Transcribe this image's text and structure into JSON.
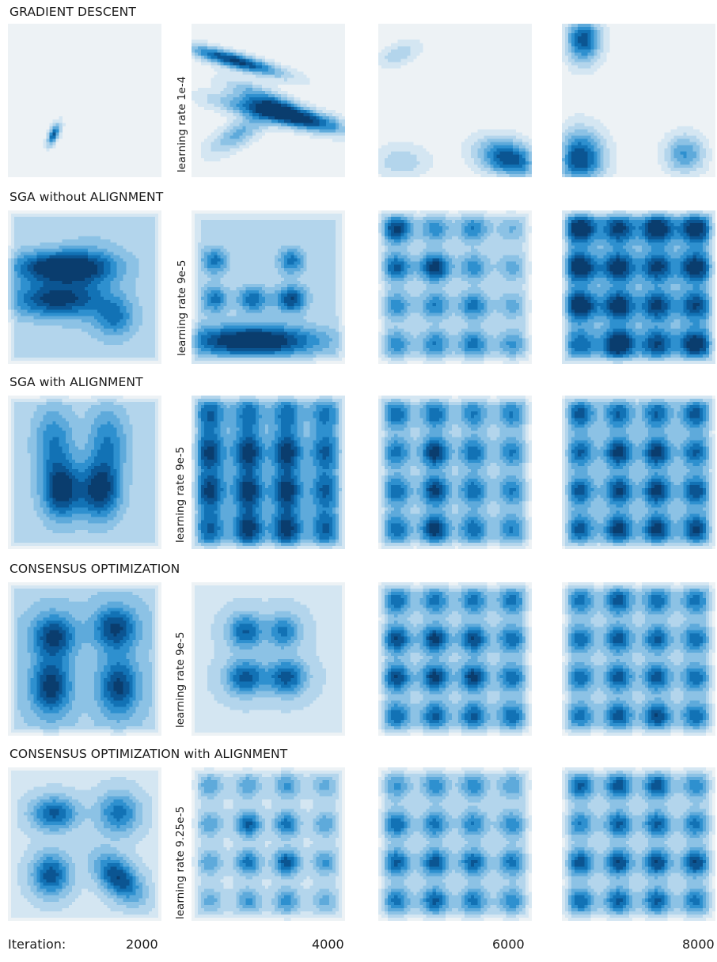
{
  "rows": [
    {
      "title": "GRADIENT DESCENT",
      "learning_rate_label": "learning rate 1e-4"
    },
    {
      "title": "SGA without ALIGNMENT",
      "learning_rate_label": "learning rate 9e-5"
    },
    {
      "title": "SGA with ALIGNMENT",
      "learning_rate_label": "learning rate 9e-5"
    },
    {
      "title": "CONSENSUS OPTIMIZATION",
      "learning_rate_label": "learning rate 9e-5"
    },
    {
      "title": "CONSENSUS OPTIMIZATION with ALIGNMENT",
      "learning_rate_label": "learning rate 9.25e-5"
    }
  ],
  "footer": {
    "iteration_label": "Iteration:",
    "iterations": [
      "2000",
      "4000",
      "6000",
      "8000"
    ]
  },
  "colors": [
    "#edf2f5",
    "#d4e6f2",
    "#b3d5ec",
    "#8cc2e5",
    "#5eaadb",
    "#2e90cf",
    "#1272b5",
    "#0b5592",
    "#0a3d6e"
  ],
  "chart_data": {
    "type": "heatmap",
    "description_units": "kernel density of generator samples on a 2D domain; x,y in [0,1]; density in [0,1]",
    "rows": [
      "GRADIENT DESCENT",
      "SGA without ALIGNMENT",
      "SGA with ALIGNMENT",
      "CONSENSUS OPTIMIZATION",
      "CONSENSUS OPTIMIZATION with ALIGNMENT"
    ],
    "columns": [
      "2000",
      "4000",
      "6000",
      "8000"
    ],
    "panels": [
      [
        {
          "base": 0,
          "blobs": [
            [
              0.3,
              0.72,
              0.03,
              0.05,
              0.88,
              -0.6
            ]
          ]
        },
        {
          "base": 0,
          "blobs": [
            [
              0.28,
              0.24,
              0.22,
              0.07,
              1.0,
              0.85
            ],
            [
              0.62,
              0.6,
              0.3,
              0.08,
              0.95,
              0.8
            ],
            [
              0.3,
              0.72,
              0.13,
              0.09,
              0.5,
              -0.7
            ],
            [
              0.5,
              0.5,
              0.18,
              0.09,
              0.6,
              0.8
            ]
          ]
        },
        {
          "base": 0,
          "blobs": [
            [
              0.85,
              0.88,
              0.14,
              0.09,
              0.95,
              0.3
            ],
            [
              0.13,
              0.2,
              0.1,
              0.06,
              0.3,
              -0.5
            ],
            [
              0.15,
              0.9,
              0.13,
              0.08,
              0.3,
              0
            ]
          ]
        },
        {
          "base": 0,
          "blobs": [
            [
              0.12,
              0.88,
              0.11,
              0.13,
              0.95,
              0
            ],
            [
              0.14,
              0.1,
              0.08,
              0.11,
              0.9,
              0
            ],
            [
              0.8,
              0.85,
              0.09,
              0.09,
              0.6,
              0
            ]
          ]
        }
      ],
      [
        {
          "base": 0.45,
          "blobs": [
            [
              0.35,
              0.37,
              0.22,
              0.07,
              0.95,
              0
            ],
            [
              0.3,
              0.58,
              0.2,
              0.08,
              0.75,
              0
            ],
            [
              0.7,
              0.7,
              0.09,
              0.09,
              0.45,
              0
            ],
            [
              0.55,
              0.45,
              0.15,
              0.2,
              0.2,
              0
            ]
          ]
        },
        {
          "base": 0.4,
          "blobs": [
            [
              0.4,
              0.85,
              0.3,
              0.07,
              1.0,
              0
            ],
            [
              0.15,
              0.33,
              0.06,
              0.06,
              0.55,
              0
            ],
            [
              0.65,
              0.33,
              0.06,
              0.06,
              0.55,
              0
            ],
            [
              0.15,
              0.58,
              0.06,
              0.06,
              0.55,
              0
            ],
            [
              0.4,
              0.58,
              0.07,
              0.06,
              0.6,
              0
            ],
            [
              0.65,
              0.58,
              0.07,
              0.06,
              0.75,
              0
            ]
          ]
        },
        {
          "base": 0.3,
          "grid": {
            "xs": [
              0.12,
              0.37,
              0.62,
              0.87
            ],
            "ys": [
              0.12,
              0.37,
              0.62,
              0.87
            ],
            "sx": 0.07,
            "sy": 0.065,
            "amps": [
              [
                0.85,
                0.5,
                0.55,
                0.3
              ],
              [
                0.7,
                0.9,
                0.5,
                0.35
              ],
              [
                0.5,
                0.55,
                0.6,
                0.35
              ],
              [
                0.5,
                0.55,
                0.6,
                0.45
              ]
            ]
          }
        },
        {
          "base": 0.5,
          "grid": {
            "xs": [
              0.12,
              0.37,
              0.62,
              0.87
            ],
            "ys": [
              0.12,
              0.37,
              0.62,
              0.87
            ],
            "sx": 0.075,
            "sy": 0.07,
            "amps": [
              [
                0.9,
                0.75,
                0.9,
                0.85
              ],
              [
                0.9,
                0.85,
                0.75,
                0.85
              ],
              [
                0.9,
                0.85,
                0.75,
                0.7
              ],
              [
                0.55,
                0.95,
                0.7,
                0.85
              ]
            ]
          }
        }
      ],
      [
        {
          "base": 0.45,
          "blobs": [
            [
              0.35,
              0.62,
              0.09,
              0.13,
              0.8,
              0
            ],
            [
              0.6,
              0.62,
              0.09,
              0.13,
              0.8,
              0
            ],
            [
              0.3,
              0.3,
              0.09,
              0.16,
              0.45,
              0
            ],
            [
              0.65,
              0.3,
              0.09,
              0.16,
              0.45,
              0
            ]
          ]
        },
        {
          "base": 0.45,
          "grid": {
            "xs": [
              0.12,
              0.37,
              0.62,
              0.87
            ],
            "ys": [
              0.12,
              0.37,
              0.62,
              0.87
            ],
            "sx": 0.07,
            "sy": 0.09,
            "amps": [
              [
                0.6,
                0.55,
                0.55,
                0.5
              ],
              [
                0.75,
                0.8,
                0.8,
                0.6
              ],
              [
                0.75,
                0.8,
                0.8,
                0.6
              ],
              [
                0.6,
                0.8,
                0.8,
                0.6
              ]
            ]
          }
        },
        {
          "base": 0.4,
          "grid": {
            "xs": [
              0.12,
              0.37,
              0.62,
              0.87
            ],
            "ys": [
              0.12,
              0.37,
              0.62,
              0.87
            ],
            "sx": 0.065,
            "sy": 0.07,
            "amps": [
              [
                0.6,
                0.6,
                0.5,
                0.5
              ],
              [
                0.55,
                0.85,
                0.6,
                0.5
              ],
              [
                0.6,
                0.8,
                0.6,
                0.5
              ],
              [
                0.6,
                0.85,
                0.6,
                0.5
              ]
            ]
          }
        },
        {
          "base": 0.45,
          "grid": {
            "xs": [
              0.12,
              0.37,
              0.62,
              0.87
            ],
            "ys": [
              0.12,
              0.37,
              0.62,
              0.87
            ],
            "sx": 0.065,
            "sy": 0.07,
            "amps": [
              [
                0.65,
                0.6,
                0.6,
                0.65
              ],
              [
                0.6,
                0.8,
                0.8,
                0.6
              ],
              [
                0.65,
                0.75,
                0.8,
                0.7
              ],
              [
                0.65,
                0.8,
                0.8,
                0.75
              ]
            ]
          }
        }
      ],
      [
        {
          "base": 0.55,
          "blobs": [
            [
              0.3,
              0.35,
              0.1,
              0.1,
              0.7,
              0
            ],
            [
              0.7,
              0.3,
              0.1,
              0.1,
              0.7,
              0
            ],
            [
              0.28,
              0.68,
              0.09,
              0.13,
              0.75,
              0
            ],
            [
              0.72,
              0.68,
              0.09,
              0.13,
              0.7,
              0
            ]
          ]
        },
        {
          "base": 0.35,
          "blobs": [
            [
              0.35,
              0.32,
              0.08,
              0.08,
              0.65,
              0
            ],
            [
              0.6,
              0.32,
              0.08,
              0.08,
              0.55,
              0
            ],
            [
              0.35,
              0.62,
              0.09,
              0.08,
              0.7,
              0
            ],
            [
              0.62,
              0.62,
              0.09,
              0.08,
              0.7,
              0
            ]
          ]
        },
        {
          "base": 0.4,
          "grid": {
            "xs": [
              0.12,
              0.37,
              0.62,
              0.87
            ],
            "ys": [
              0.12,
              0.37,
              0.62,
              0.87
            ],
            "sx": 0.065,
            "sy": 0.065,
            "amps": [
              [
                0.6,
                0.55,
                0.55,
                0.55
              ],
              [
                0.75,
                0.8,
                0.75,
                0.6
              ],
              [
                0.75,
                0.8,
                0.8,
                0.6
              ],
              [
                0.6,
                0.65,
                0.65,
                0.6
              ]
            ]
          }
        },
        {
          "base": 0.4,
          "grid": {
            "xs": [
              0.12,
              0.37,
              0.62,
              0.87
            ],
            "ys": [
              0.12,
              0.37,
              0.62,
              0.87
            ],
            "sx": 0.065,
            "sy": 0.065,
            "amps": [
              [
                0.55,
                0.7,
                0.6,
                0.55
              ],
              [
                0.6,
                0.7,
                0.65,
                0.6
              ],
              [
                0.6,
                0.7,
                0.7,
                0.6
              ],
              [
                0.55,
                0.7,
                0.75,
                0.6
              ]
            ]
          }
        }
      ],
      [
        {
          "base": 0.3,
          "blobs": [
            [
              0.3,
              0.3,
              0.11,
              0.08,
              0.7,
              0
            ],
            [
              0.72,
              0.3,
              0.1,
              0.1,
              0.6,
              0
            ],
            [
              0.28,
              0.7,
              0.09,
              0.1,
              0.75,
              0
            ],
            [
              0.72,
              0.72,
              0.11,
              0.11,
              0.8,
              0.5
            ]
          ]
        },
        {
          "base": 0.3,
          "grid": {
            "xs": [
              0.12,
              0.37,
              0.62,
              0.87
            ],
            "ys": [
              0.12,
              0.37,
              0.62,
              0.87
            ],
            "sx": 0.06,
            "sy": 0.06,
            "amps": [
              [
                0.4,
                0.4,
                0.45,
                0.35
              ],
              [
                0.4,
                0.7,
                0.6,
                0.4
              ],
              [
                0.4,
                0.6,
                0.75,
                0.45
              ],
              [
                0.35,
                0.45,
                0.5,
                0.35
              ]
            ]
          }
        },
        {
          "base": 0.3,
          "grid": {
            "xs": [
              0.12,
              0.37,
              0.62,
              0.87
            ],
            "ys": [
              0.12,
              0.37,
              0.62,
              0.87
            ],
            "sx": 0.065,
            "sy": 0.065,
            "amps": [
              [
                0.45,
                0.5,
                0.5,
                0.4
              ],
              [
                0.65,
                0.6,
                0.55,
                0.5
              ],
              [
                0.7,
                0.75,
                0.7,
                0.6
              ],
              [
                0.6,
                0.7,
                0.6,
                0.5
              ]
            ]
          }
        },
        {
          "base": 0.3,
          "grid": {
            "xs": [
              0.12,
              0.37,
              0.62,
              0.87
            ],
            "ys": [
              0.12,
              0.37,
              0.62,
              0.87
            ],
            "sx": 0.065,
            "sy": 0.065,
            "amps": [
              [
                0.7,
                0.75,
                0.75,
                0.5
              ],
              [
                0.55,
                0.7,
                0.7,
                0.6
              ],
              [
                0.75,
                0.8,
                0.8,
                0.8
              ],
              [
                0.65,
                0.7,
                0.7,
                0.6
              ]
            ]
          }
        }
      ]
    ]
  }
}
